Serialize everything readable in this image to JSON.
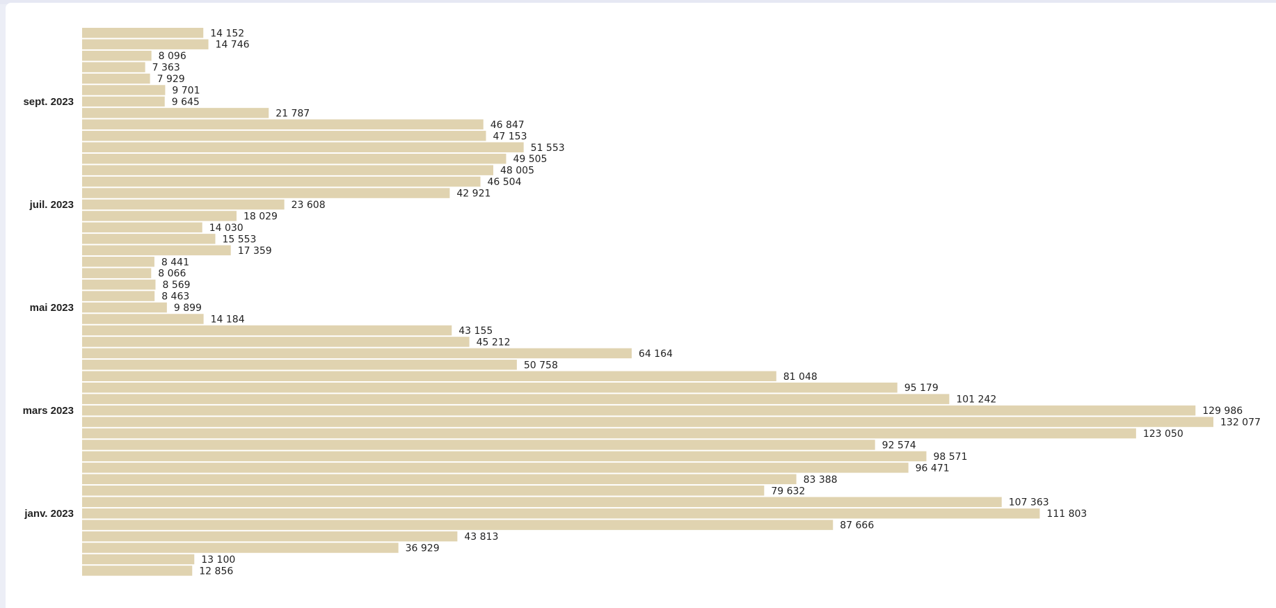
{
  "chart_data": {
    "type": "bar",
    "orientation": "horizontal",
    "title": "",
    "xlabel": "",
    "ylabel": "",
    "bar_color": "#e0d3b0",
    "xlim": [
      0,
      132077
    ],
    "y_tick_labels": [
      {
        "label": "sept. 2023",
        "bar_index": 6
      },
      {
        "label": "juil. 2023",
        "bar_index": 15
      },
      {
        "label": "mai 2023",
        "bar_index": 24
      },
      {
        "label": "mars 2023",
        "bar_index": 33
      },
      {
        "label": "janv. 2023",
        "bar_index": 42
      }
    ],
    "values": [
      14152,
      14746,
      8096,
      7363,
      7929,
      9701,
      9645,
      21787,
      46847,
      47153,
      51553,
      49505,
      48005,
      46504,
      42921,
      23608,
      18029,
      14030,
      15553,
      17359,
      8441,
      8066,
      8569,
      8463,
      9899,
      14184,
      43155,
      45212,
      64164,
      50758,
      81048,
      95179,
      101242,
      129986,
      132077,
      123050,
      92574,
      98571,
      96471,
      83388,
      79632,
      107363,
      111803,
      87666,
      43813,
      36929,
      13100,
      12856
    ],
    "value_labels": [
      "14 152",
      "14 746",
      "8 096",
      "7 363",
      "7 929",
      "9 701",
      "9 645",
      "21 787",
      "46 847",
      "47 153",
      "51 553",
      "49 505",
      "48 005",
      "46 504",
      "42 921",
      "23 608",
      "18 029",
      "14 030",
      "15 553",
      "17 359",
      "8 441",
      "8 066",
      "8 569",
      "8 463",
      "9 899",
      "14 184",
      "43 155",
      "45 212",
      "64 164",
      "50 758",
      "81 048",
      "95 179",
      "101 242",
      "129 986",
      "132 077",
      "123 050",
      "92 574",
      "98 571",
      "96 471",
      "83 388",
      "79 632",
      "107 363",
      "111 803",
      "87 666",
      "43 813",
      "36 929",
      "13 100",
      "12 856"
    ]
  }
}
